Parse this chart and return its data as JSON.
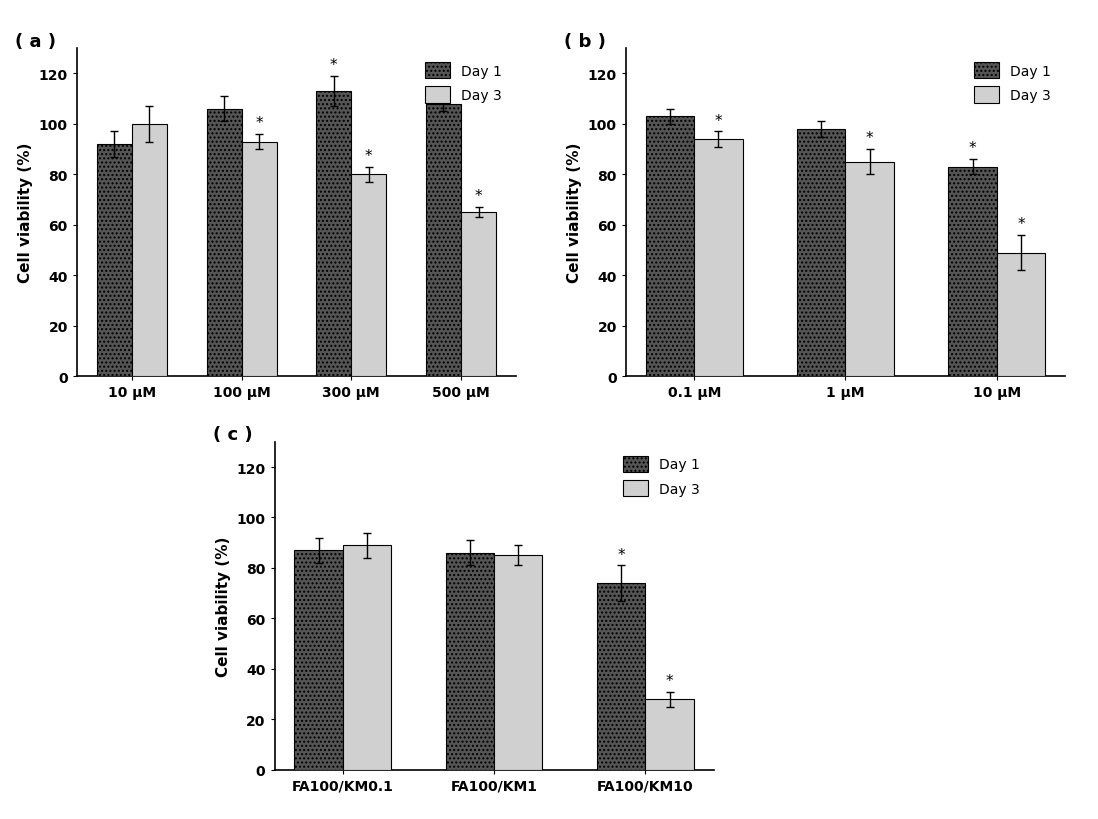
{
  "panel_a": {
    "title": "( a )",
    "categories": [
      "10 μM",
      "100 μM",
      "300 μM",
      "500 μM"
    ],
    "day1_values": [
      92,
      106,
      113,
      108
    ],
    "day3_values": [
      100,
      93,
      80,
      65
    ],
    "day1_errors": [
      5,
      5,
      6,
      3
    ],
    "day3_errors": [
      7,
      3,
      3,
      2
    ],
    "day1_star": [
      false,
      false,
      true,
      false
    ],
    "day3_star": [
      false,
      true,
      true,
      true
    ],
    "ylabel": "Cell viability (%)",
    "ylim": [
      0,
      130
    ],
    "yticks": [
      0,
      20,
      40,
      60,
      80,
      100,
      120
    ]
  },
  "panel_b": {
    "title": "( b )",
    "categories": [
      "0.1 μM",
      "1 μM",
      "10 μM"
    ],
    "day1_values": [
      103,
      98,
      83
    ],
    "day3_values": [
      94,
      85,
      49
    ],
    "day1_errors": [
      3,
      3,
      3
    ],
    "day3_errors": [
      3,
      5,
      7
    ],
    "day1_star": [
      false,
      false,
      true
    ],
    "day3_star": [
      true,
      true,
      true
    ],
    "ylabel": "Cell viability (%)",
    "ylim": [
      0,
      130
    ],
    "yticks": [
      0,
      20,
      40,
      60,
      80,
      100,
      120
    ]
  },
  "panel_c": {
    "title": "( c )",
    "categories": [
      "FA100/KM0.1",
      "FA100/KM1",
      "FA100/KM10"
    ],
    "day1_values": [
      87,
      86,
      74
    ],
    "day3_values": [
      89,
      85,
      28
    ],
    "day1_errors": [
      5,
      5,
      7
    ],
    "day3_errors": [
      5,
      4,
      3
    ],
    "day1_star": [
      false,
      false,
      true
    ],
    "day3_star": [
      false,
      false,
      true
    ],
    "ylabel": "Cell viability (%)",
    "ylim": [
      0,
      130
    ],
    "yticks": [
      0,
      20,
      40,
      60,
      80,
      100,
      120
    ]
  },
  "legend_labels": [
    "Day 1",
    "Day 3"
  ],
  "day1_facecolor": "#555555",
  "day3_facecolor": "#d0d0d0",
  "bar_width": 0.32,
  "fig_width": 10.98,
  "fig_height": 8.2,
  "background_color": "#ffffff",
  "star_fontsize": 11,
  "label_fontsize": 10,
  "ylabel_fontsize": 11,
  "title_fontsize": 13
}
